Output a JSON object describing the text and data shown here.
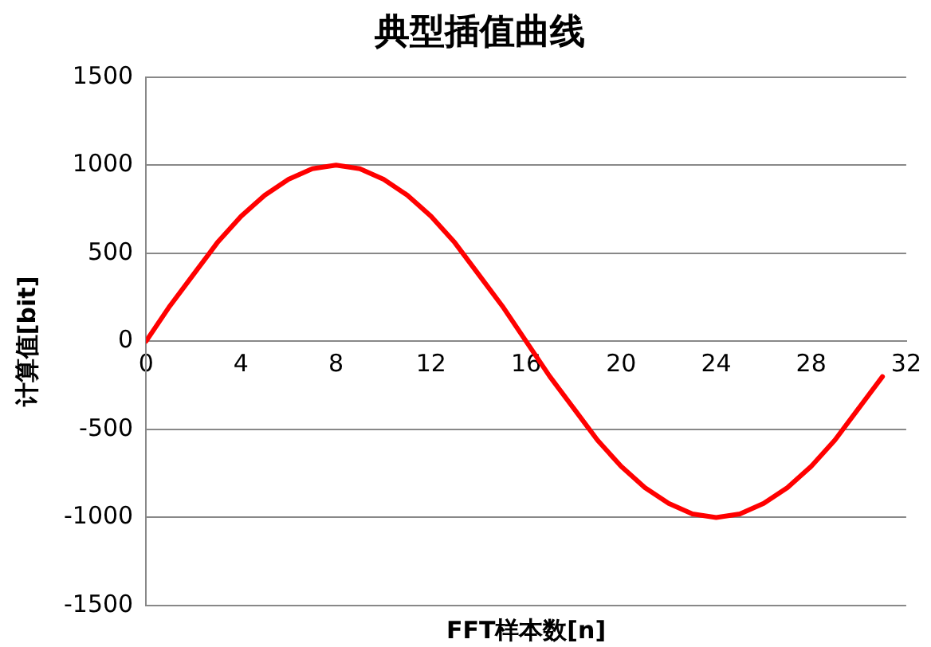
{
  "chart_data": {
    "type": "line",
    "title": "典型插值曲线",
    "xlabel": "FFT样本数[n]",
    "ylabel": "计算值[bit]",
    "x": [
      0,
      1,
      2,
      3,
      4,
      5,
      6,
      7,
      8,
      9,
      10,
      11,
      12,
      13,
      14,
      15,
      16,
      17,
      18,
      19,
      20,
      21,
      22,
      23,
      24,
      25,
      26,
      27,
      28,
      29,
      30,
      31
    ],
    "series": [
      {
        "color": "#ff0000",
        "values": [
          0,
          200,
          380,
          560,
          710,
          830,
          920,
          980,
          1000,
          980,
          920,
          830,
          710,
          560,
          380,
          200,
          0,
          -200,
          -380,
          -560,
          -710,
          -830,
          -920,
          -980,
          -1000,
          -980,
          -920,
          -830,
          -710,
          -560,
          -380,
          -200
        ]
      }
    ],
    "xlim": [
      0,
      32
    ],
    "xticks": [
      0,
      4,
      8,
      12,
      16,
      20,
      24,
      28,
      32
    ],
    "ylim": [
      -1500,
      1500
    ],
    "yticks": [
      -1500,
      -1000,
      -500,
      0,
      500,
      1000,
      1500
    ],
    "grid": "y",
    "legend": false,
    "marker": "none",
    "line_style": "solid"
  }
}
